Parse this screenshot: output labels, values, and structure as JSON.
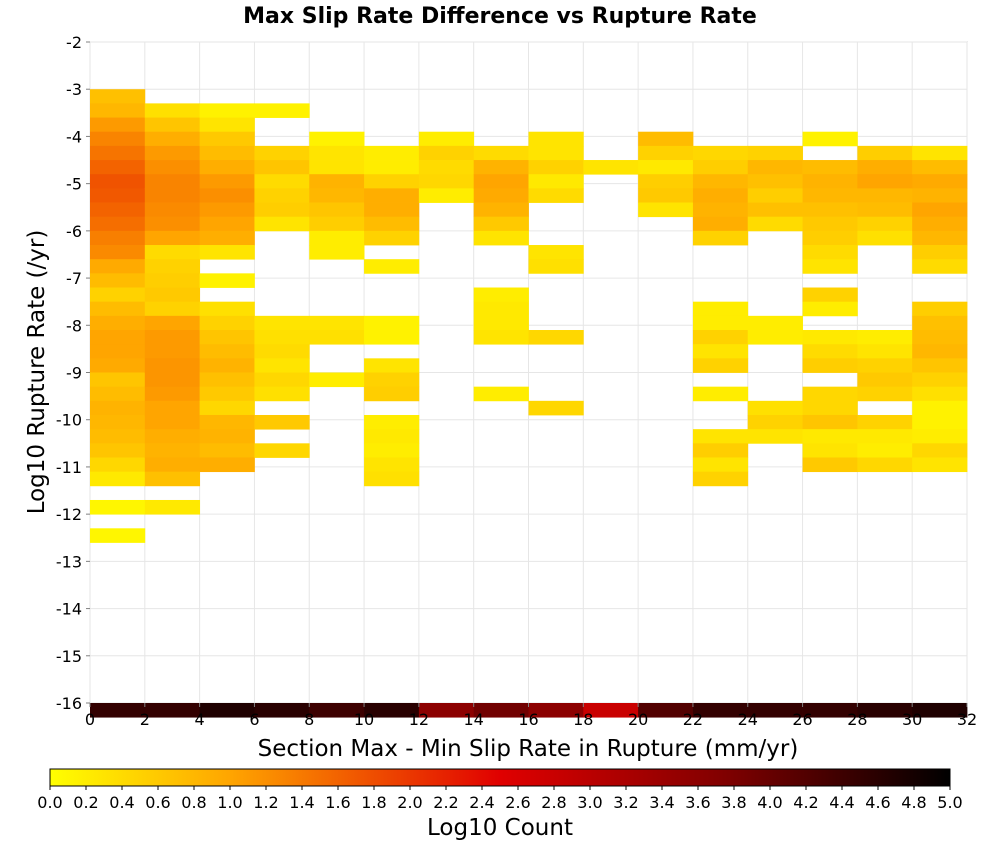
{
  "chart_data": {
    "type": "heatmap",
    "title": "Max Slip Rate Difference vs Rupture Rate",
    "xlabel": "Section Max - Min Slip Rate in Rupture (mm/yr)",
    "ylabel": "Log10 Rupture Rate (/yr)",
    "xlim": [
      0,
      32
    ],
    "ylim": [
      -16,
      -2
    ],
    "x_ticks": [
      0,
      2,
      4,
      6,
      8,
      10,
      12,
      14,
      16,
      18,
      20,
      22,
      24,
      26,
      28,
      30,
      32
    ],
    "y_ticks": [
      -2,
      -3,
      -4,
      -5,
      -6,
      -7,
      -8,
      -9,
      -10,
      -11,
      -12,
      -13,
      -14,
      -15,
      -16
    ],
    "grid": true,
    "x_bin_width": 2,
    "y_bin_height": 0.3,
    "colorbar": {
      "label": "Log10 Count",
      "min": 0.0,
      "max": 5.0,
      "ticks": [
        "0.0",
        "0.2",
        "0.4",
        "0.6",
        "0.8",
        "1.0",
        "1.2",
        "1.4",
        "1.6",
        "1.8",
        "2.0",
        "2.2",
        "2.4",
        "2.6",
        "2.8",
        "3.0",
        "3.2",
        "3.4",
        "3.6",
        "3.8",
        "4.0",
        "4.2",
        "4.4",
        "4.6",
        "4.8",
        "5.0"
      ],
      "colors": [
        "#ffff00",
        "#ff0000",
        "#000000"
      ],
      "placement": "bottom"
    },
    "columns": [
      {
        "x": 0,
        "cells": [
          [
            -3.0,
            0.7
          ],
          [
            -3.3,
            0.8
          ],
          [
            -3.6,
            1.1
          ],
          [
            -3.9,
            1.3
          ],
          [
            -4.2,
            1.45
          ],
          [
            -4.5,
            1.6
          ],
          [
            -4.8,
            1.75
          ],
          [
            -5.1,
            1.7
          ],
          [
            -5.4,
            1.6
          ],
          [
            -5.7,
            1.5
          ],
          [
            -6.0,
            1.35
          ],
          [
            -6.3,
            1.25
          ],
          [
            -6.6,
            0.95
          ],
          [
            -6.9,
            0.75
          ],
          [
            -7.2,
            0.5
          ],
          [
            -7.5,
            0.75
          ],
          [
            -7.8,
            0.9
          ],
          [
            -8.1,
            1.0
          ],
          [
            -8.4,
            1.0
          ],
          [
            -8.7,
            0.95
          ],
          [
            -9.0,
            0.65
          ],
          [
            -9.3,
            0.75
          ],
          [
            -9.6,
            0.85
          ],
          [
            -9.9,
            0.8
          ],
          [
            -10.2,
            0.75
          ],
          [
            -10.5,
            0.65
          ],
          [
            -10.8,
            0.45
          ],
          [
            -11.1,
            0.25
          ],
          [
            -11.7,
            0.1
          ],
          [
            -12.3,
            0.1
          ],
          [
            -16.0,
            4.5
          ]
        ]
      },
      {
        "x": 2,
        "cells": [
          [
            -3.3,
            0.35
          ],
          [
            -3.6,
            0.65
          ],
          [
            -3.9,
            0.9
          ],
          [
            -4.2,
            1.1
          ],
          [
            -4.5,
            1.2
          ],
          [
            -4.8,
            1.3
          ],
          [
            -5.1,
            1.3
          ],
          [
            -5.4,
            1.25
          ],
          [
            -5.7,
            1.2
          ],
          [
            -6.0,
            1.0
          ],
          [
            -6.3,
            0.4
          ],
          [
            -6.6,
            0.5
          ],
          [
            -6.9,
            0.55
          ],
          [
            -7.2,
            0.6
          ],
          [
            -7.5,
            0.5
          ],
          [
            -7.8,
            1.0
          ],
          [
            -8.1,
            1.1
          ],
          [
            -8.4,
            1.1
          ],
          [
            -8.7,
            1.15
          ],
          [
            -9.0,
            1.15
          ],
          [
            -9.3,
            1.1
          ],
          [
            -9.6,
            1.0
          ],
          [
            -9.9,
            1.0
          ],
          [
            -10.2,
            0.9
          ],
          [
            -10.5,
            0.85
          ],
          [
            -10.8,
            0.9
          ],
          [
            -11.1,
            0.7
          ],
          [
            -11.7,
            0.25
          ],
          [
            -16.0,
            4.5
          ]
        ]
      },
      {
        "x": 4,
        "cells": [
          [
            -3.3,
            0.15
          ],
          [
            -3.6,
            0.3
          ],
          [
            -3.9,
            0.6
          ],
          [
            -4.2,
            0.75
          ],
          [
            -4.5,
            0.9
          ],
          [
            -4.8,
            1.1
          ],
          [
            -5.1,
            1.2
          ],
          [
            -5.4,
            1.1
          ],
          [
            -5.7,
            1.0
          ],
          [
            -6.0,
            0.9
          ],
          [
            -6.3,
            0.3
          ],
          [
            -6.9,
            0.15
          ],
          [
            -7.5,
            0.35
          ],
          [
            -7.8,
            0.5
          ],
          [
            -8.1,
            0.65
          ],
          [
            -8.4,
            0.75
          ],
          [
            -8.7,
            0.85
          ],
          [
            -9.0,
            0.7
          ],
          [
            -9.3,
            0.6
          ],
          [
            -9.6,
            0.45
          ],
          [
            -9.9,
            0.8
          ],
          [
            -10.2,
            0.85
          ],
          [
            -10.5,
            0.75
          ],
          [
            -10.8,
            0.9
          ],
          [
            -16.0,
            4.7
          ]
        ]
      },
      {
        "x": 6,
        "cells": [
          [
            -3.3,
            0.15
          ],
          [
            -4.2,
            0.5
          ],
          [
            -4.5,
            0.65
          ],
          [
            -4.8,
            0.4
          ],
          [
            -5.1,
            0.5
          ],
          [
            -5.4,
            0.55
          ],
          [
            -5.7,
            0.3
          ],
          [
            -7.8,
            0.3
          ],
          [
            -8.1,
            0.35
          ],
          [
            -8.4,
            0.4
          ],
          [
            -8.7,
            0.3
          ],
          [
            -9.0,
            0.45
          ],
          [
            -9.3,
            0.35
          ],
          [
            -9.9,
            0.6
          ],
          [
            -10.5,
            0.45
          ],
          [
            -16.0,
            4.6
          ]
        ]
      },
      {
        "x": 8,
        "cells": [
          [
            -3.9,
            0.15
          ],
          [
            -4.2,
            0.3
          ],
          [
            -4.5,
            0.3
          ],
          [
            -4.8,
            0.85
          ],
          [
            -5.1,
            0.8
          ],
          [
            -5.4,
            0.65
          ],
          [
            -5.7,
            0.55
          ],
          [
            -6.0,
            0.2
          ],
          [
            -6.3,
            0.2
          ],
          [
            -7.8,
            0.3
          ],
          [
            -8.1,
            0.35
          ],
          [
            -9.0,
            0.2
          ],
          [
            -16.0,
            4.4
          ]
        ]
      },
      {
        "x": 10,
        "cells": [
          [
            -4.2,
            0.2
          ],
          [
            -4.5,
            0.2
          ],
          [
            -4.8,
            0.5
          ],
          [
            -5.1,
            0.9
          ],
          [
            -5.4,
            0.9
          ],
          [
            -5.7,
            0.75
          ],
          [
            -6.0,
            0.5
          ],
          [
            -6.6,
            0.2
          ],
          [
            -7.8,
            0.15
          ],
          [
            -8.1,
            0.15
          ],
          [
            -8.7,
            0.3
          ],
          [
            -9.0,
            0.5
          ],
          [
            -9.3,
            0.55
          ],
          [
            -9.9,
            0.2
          ],
          [
            -10.2,
            0.25
          ],
          [
            -10.5,
            0.2
          ],
          [
            -10.8,
            0.3
          ],
          [
            -11.1,
            0.35
          ],
          [
            -16.0,
            4.6
          ]
        ]
      },
      {
        "x": 12,
        "cells": [
          [
            -3.9,
            0.2
          ],
          [
            -4.2,
            0.5
          ],
          [
            -4.5,
            0.4
          ],
          [
            -4.8,
            0.45
          ],
          [
            -5.1,
            0.2
          ],
          [
            -16.0,
            3.6
          ]
        ]
      },
      {
        "x": 14,
        "cells": [
          [
            -4.2,
            0.4
          ],
          [
            -4.5,
            0.85
          ],
          [
            -4.8,
            1.0
          ],
          [
            -5.1,
            0.95
          ],
          [
            -5.4,
            0.85
          ],
          [
            -5.7,
            0.6
          ],
          [
            -6.0,
            0.3
          ],
          [
            -7.2,
            0.2
          ],
          [
            -7.5,
            0.25
          ],
          [
            -7.8,
            0.25
          ],
          [
            -8.1,
            0.3
          ],
          [
            -9.3,
            0.2
          ],
          [
            -16.0,
            3.9
          ]
        ]
      },
      {
        "x": 16,
        "cells": [
          [
            -3.9,
            0.3
          ],
          [
            -4.2,
            0.3
          ],
          [
            -4.5,
            0.5
          ],
          [
            -4.8,
            0.25
          ],
          [
            -5.1,
            0.4
          ],
          [
            -6.3,
            0.3
          ],
          [
            -6.6,
            0.35
          ],
          [
            -8.1,
            0.45
          ],
          [
            -9.6,
            0.45
          ],
          [
            -16.0,
            3.6
          ]
        ]
      },
      {
        "x": 18,
        "cells": [
          [
            -4.5,
            0.3
          ],
          [
            -16.0,
            2.8
          ]
        ]
      },
      {
        "x": 20,
        "cells": [
          [
            -3.9,
            0.75
          ],
          [
            -4.2,
            0.5
          ],
          [
            -4.5,
            0.25
          ],
          [
            -4.8,
            0.55
          ],
          [
            -5.1,
            0.6
          ],
          [
            -5.4,
            0.3
          ],
          [
            -16.0,
            4.2
          ]
        ]
      },
      {
        "x": 22,
        "cells": [
          [
            -4.2,
            0.45
          ],
          [
            -4.5,
            0.55
          ],
          [
            -4.8,
            0.8
          ],
          [
            -5.1,
            0.9
          ],
          [
            -5.4,
            0.85
          ],
          [
            -5.7,
            0.9
          ],
          [
            -6.0,
            0.5
          ],
          [
            -7.5,
            0.2
          ],
          [
            -7.8,
            0.2
          ],
          [
            -8.1,
            0.5
          ],
          [
            -8.4,
            0.3
          ],
          [
            -8.7,
            0.5
          ],
          [
            -9.3,
            0.2
          ],
          [
            -10.2,
            0.3
          ],
          [
            -10.5,
            0.55
          ],
          [
            -10.8,
            0.3
          ],
          [
            -11.1,
            0.5
          ],
          [
            -16.0,
            4.5
          ]
        ]
      },
      {
        "x": 24,
        "cells": [
          [
            -4.2,
            0.5
          ],
          [
            -4.5,
            0.8
          ],
          [
            -4.8,
            0.7
          ],
          [
            -5.1,
            0.55
          ],
          [
            -5.4,
            0.7
          ],
          [
            -5.7,
            0.4
          ],
          [
            -7.8,
            0.2
          ],
          [
            -8.1,
            0.2
          ],
          [
            -9.6,
            0.35
          ],
          [
            -9.9,
            0.5
          ],
          [
            -10.2,
            0.3
          ],
          [
            -16.0,
            4.5
          ]
        ]
      },
      {
        "x": 26,
        "cells": [
          [
            -3.9,
            0.15
          ],
          [
            -4.5,
            0.75
          ],
          [
            -4.8,
            0.85
          ],
          [
            -5.1,
            0.8
          ],
          [
            -5.4,
            0.7
          ],
          [
            -5.7,
            0.6
          ],
          [
            -6.0,
            0.55
          ],
          [
            -6.3,
            0.4
          ],
          [
            -6.6,
            0.3
          ],
          [
            -7.2,
            0.5
          ],
          [
            -7.5,
            0.2
          ],
          [
            -8.1,
            0.25
          ],
          [
            -8.4,
            0.4
          ],
          [
            -8.7,
            0.55
          ],
          [
            -9.3,
            0.45
          ],
          [
            -9.6,
            0.45
          ],
          [
            -9.9,
            0.65
          ],
          [
            -10.2,
            0.25
          ],
          [
            -10.5,
            0.3
          ],
          [
            -10.8,
            0.6
          ],
          [
            -16.0,
            4.5
          ]
        ]
      },
      {
        "x": 28,
        "cells": [
          [
            -4.2,
            0.55
          ],
          [
            -4.5,
            0.9
          ],
          [
            -4.8,
            1.0
          ],
          [
            -5.1,
            0.8
          ],
          [
            -5.4,
            0.75
          ],
          [
            -5.7,
            0.5
          ],
          [
            -6.0,
            0.35
          ],
          [
            -8.1,
            0.2
          ],
          [
            -8.4,
            0.3
          ],
          [
            -8.7,
            0.5
          ],
          [
            -9.0,
            0.6
          ],
          [
            -9.3,
            0.5
          ],
          [
            -9.9,
            0.5
          ],
          [
            -10.2,
            0.25
          ],
          [
            -10.5,
            0.2
          ],
          [
            -10.8,
            0.45
          ],
          [
            -16.0,
            4.6
          ]
        ]
      },
      {
        "x": 30,
        "cells": [
          [
            -4.2,
            0.3
          ],
          [
            -4.5,
            0.75
          ],
          [
            -4.8,
            0.95
          ],
          [
            -5.1,
            0.85
          ],
          [
            -5.4,
            1.0
          ],
          [
            -5.7,
            0.9
          ],
          [
            -6.0,
            0.8
          ],
          [
            -6.3,
            0.55
          ],
          [
            -6.6,
            0.4
          ],
          [
            -7.5,
            0.55
          ],
          [
            -7.8,
            0.7
          ],
          [
            -8.1,
            0.75
          ],
          [
            -8.4,
            0.8
          ],
          [
            -8.7,
            0.65
          ],
          [
            -9.0,
            0.5
          ],
          [
            -9.3,
            0.35
          ],
          [
            -9.6,
            0.15
          ],
          [
            -9.9,
            0.15
          ],
          [
            -10.2,
            0.2
          ],
          [
            -10.5,
            0.45
          ],
          [
            -10.8,
            0.3
          ],
          [
            -16.0,
            4.7
          ]
        ]
      }
    ]
  }
}
